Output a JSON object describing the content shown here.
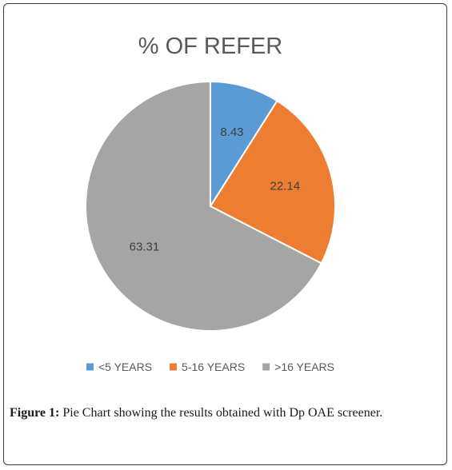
{
  "chart_data": {
    "type": "pie",
    "title": "% OF REFER",
    "categories": [
      "<5 YEARS",
      "5-16 YEARS",
      ">16 YEARS"
    ],
    "values": [
      8.43,
      22.14,
      63.31
    ],
    "colors": [
      "#5b9bd5",
      "#ed7d31",
      "#a5a5a5"
    ],
    "legend_position": "bottom",
    "start_angle": "top, clockwise"
  },
  "caption": {
    "label": "Figure 1:",
    "text": "Pie Chart showing the results obtained with Dp OAE screener."
  }
}
